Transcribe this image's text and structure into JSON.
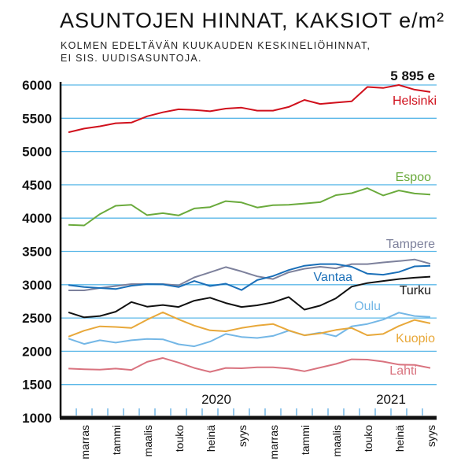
{
  "title": "ASUNTOJEN HINNAT, KAKSIOT e/m²",
  "subtitle_line1": "KOLMEN EDELTÄVÄN KUUKAUDEN KESKINELIÖHINNAT,",
  "subtitle_line2": "EI SIS. UUDISASUNTOJA.",
  "chart_data": {
    "type": "line",
    "title": "ASUNTOJEN HINNAT, KAKSIOT e/m²",
    "ylim": [
      1000,
      6000
    ],
    "yticks": [
      1000,
      1500,
      2000,
      2500,
      3000,
      3500,
      4000,
      4500,
      5000,
      5500,
      6000
    ],
    "grid": true,
    "x": [
      "2019-10",
      "2019-11",
      "2019-12",
      "2020-01",
      "2020-02",
      "2020-03",
      "2020-04",
      "2020-05",
      "2020-06",
      "2020-07",
      "2020-08",
      "2020-09",
      "2020-10",
      "2020-11",
      "2020-12",
      "2021-01",
      "2021-02",
      "2021-03",
      "2021-04",
      "2021-05",
      "2021-06",
      "2021-07",
      "2021-08",
      "2021-09"
    ],
    "month_labels": [
      {
        "index": 1,
        "label": "marras"
      },
      {
        "index": 3,
        "label": "tammi"
      },
      {
        "index": 5,
        "label": "maalis"
      },
      {
        "index": 7,
        "label": "touko"
      },
      {
        "index": 9,
        "label": "heinä"
      },
      {
        "index": 11,
        "label": "syys"
      },
      {
        "index": 13,
        "label": "marras"
      },
      {
        "index": 15,
        "label": "tammi"
      },
      {
        "index": 17,
        "label": "maalis"
      },
      {
        "index": 19,
        "label": "touko"
      },
      {
        "index": 21,
        "label": "heinä"
      },
      {
        "index": 23,
        "label": "syys"
      }
    ],
    "year_labels": [
      {
        "index": 9.4,
        "label": "2020"
      },
      {
        "index": 20.5,
        "label": "2021"
      }
    ],
    "annotation": "5 895 e",
    "series": [
      {
        "name": "Helsinki",
        "color": "#d0101c",
        "values": [
          5290,
          5345,
          5380,
          5425,
          5435,
          5530,
          5590,
          5635,
          5625,
          5605,
          5645,
          5660,
          5615,
          5615,
          5670,
          5775,
          5715,
          5735,
          5755,
          5970,
          5955,
          6000,
          5930,
          5895
        ]
      },
      {
        "name": "Espoo",
        "color": "#6aaa3c",
        "values": [
          3900,
          3890,
          4060,
          4185,
          4200,
          4045,
          4075,
          4040,
          4145,
          4165,
          4255,
          4235,
          4160,
          4195,
          4200,
          4220,
          4240,
          4345,
          4375,
          4450,
          4340,
          4415,
          4370,
          4355
        ]
      },
      {
        "name": "Tampere",
        "color": "#7d819c",
        "values": [
          2915,
          2915,
          2950,
          2980,
          3010,
          3010,
          3010,
          2990,
          3110,
          3185,
          3265,
          3200,
          3125,
          3085,
          3185,
          3240,
          3270,
          3245,
          3310,
          3310,
          3335,
          3355,
          3380,
          3315
        ]
      },
      {
        "name": "Vantaa",
        "color": "#1a6fb8",
        "values": [
          2995,
          2965,
          2950,
          2935,
          2985,
          3010,
          3005,
          2965,
          3055,
          2980,
          3015,
          2920,
          3070,
          3130,
          3220,
          3285,
          3310,
          3310,
          3270,
          3165,
          3150,
          3190,
          3275,
          3285
        ]
      },
      {
        "name": "Turku",
        "color": "#111111",
        "values": [
          2585,
          2510,
          2530,
          2595,
          2740,
          2670,
          2695,
          2665,
          2760,
          2805,
          2725,
          2665,
          2690,
          2735,
          2815,
          2625,
          2685,
          2795,
          2970,
          3025,
          3055,
          3085,
          3105,
          3120
        ]
      },
      {
        "name": "Oulu",
        "color": "#74b7e6",
        "values": [
          2190,
          2110,
          2165,
          2130,
          2165,
          2185,
          2180,
          2105,
          2075,
          2145,
          2260,
          2215,
          2200,
          2230,
          2310,
          2240,
          2280,
          2225,
          2375,
          2410,
          2475,
          2580,
          2530,
          2515
        ]
      },
      {
        "name": "Kuopio",
        "color": "#e8a83a",
        "values": [
          2220,
          2310,
          2375,
          2365,
          2350,
          2475,
          2585,
          2480,
          2385,
          2315,
          2300,
          2350,
          2385,
          2410,
          2315,
          2240,
          2270,
          2320,
          2350,
          2240,
          2260,
          2380,
          2470,
          2420
        ]
      },
      {
        "name": "Lahti",
        "color": "#d9737f",
        "values": [
          1740,
          1730,
          1725,
          1740,
          1720,
          1840,
          1900,
          1830,
          1750,
          1690,
          1750,
          1745,
          1760,
          1760,
          1740,
          1700,
          1755,
          1810,
          1880,
          1875,
          1845,
          1800,
          1795,
          1750
        ]
      }
    ]
  }
}
